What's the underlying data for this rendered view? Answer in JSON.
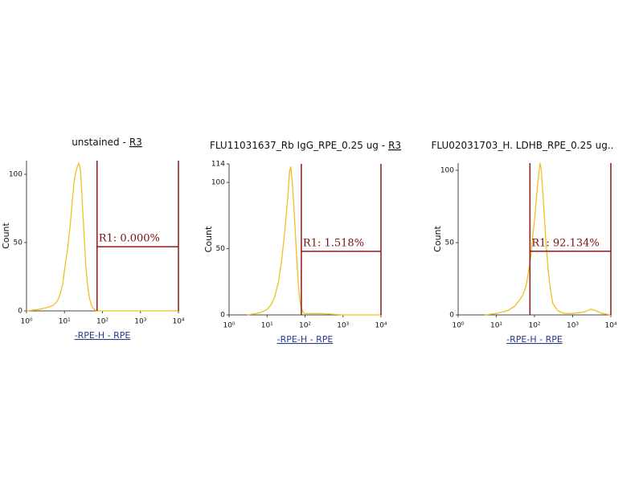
{
  "chart_data": [
    {
      "type": "line",
      "title": "unstained -",
      "title_link": "R3",
      "ylabel": "Count",
      "xlabel": "-RPE-H - RPE",
      "x_scale": "log",
      "color": "#f0c020",
      "x": [
        1,
        2,
        3,
        4,
        5,
        6,
        7,
        8,
        9,
        10,
        12,
        14,
        16,
        18,
        20,
        22,
        24,
        26,
        28,
        30,
        33,
        36,
        40,
        45,
        50,
        56,
        63,
        70,
        100,
        1000,
        10000
      ],
      "values": [
        0,
        1,
        2,
        3,
        4,
        6,
        9,
        14,
        20,
        30,
        45,
        62,
        80,
        95,
        102,
        106,
        108,
        104,
        90,
        75,
        55,
        35,
        20,
        10,
        5,
        2,
        1,
        0,
        0,
        0,
        0
      ],
      "xlim": [
        1,
        10000
      ],
      "ylim": [
        0,
        110
      ],
      "xticks": [
        {
          "value": 1,
          "label": "10⁰"
        },
        {
          "value": 10,
          "label": "10¹"
        },
        {
          "value": 100,
          "label": "10²"
        },
        {
          "value": 1000,
          "label": "10³"
        },
        {
          "value": 10000,
          "label": "10⁴"
        }
      ],
      "yticks": [
        0,
        50,
        100
      ],
      "gate": {
        "x": [
          72,
          10000
        ],
        "y": 47,
        "label": "R1: 0.000%"
      }
    },
    {
      "type": "line",
      "title": "FLU11031637_Rb IgG_RPE_0.25 ug -",
      "title_link": "R3",
      "ylabel": "Count",
      "xlabel": "-RPE-H - RPE",
      "x_scale": "log",
      "color": "#f0c020",
      "x": [
        3,
        5,
        7,
        10,
        13,
        16,
        20,
        24,
        28,
        32,
        36,
        39,
        42,
        46,
        50,
        55,
        60,
        66,
        72,
        80,
        90,
        100,
        300,
        1000,
        10000
      ],
      "values": [
        0,
        1,
        2,
        4,
        8,
        14,
        25,
        40,
        58,
        75,
        92,
        108,
        112,
        100,
        85,
        65,
        45,
        25,
        12,
        5,
        2,
        1,
        1,
        0,
        0
      ],
      "xlim": [
        1,
        10000
      ],
      "ylim": [
        0,
        114
      ],
      "xticks": [
        {
          "value": 1,
          "label": "10⁰"
        },
        {
          "value": 10,
          "label": "10¹"
        },
        {
          "value": 100,
          "label": "10²"
        },
        {
          "value": 1000,
          "label": "10³"
        },
        {
          "value": 10000,
          "label": "10⁴"
        }
      ],
      "yticks": [
        0,
        50,
        100,
        114
      ],
      "gate": {
        "x": [
          80,
          10000
        ],
        "y": 48,
        "label": "R1: 1.518%"
      }
    },
    {
      "type": "line",
      "title": "FLU02031703_H. LDHB_RPE_0.25 ug..",
      "ylabel": "Count",
      "xlabel": "-RPE-H - RPE",
      "x_scale": "log",
      "color": "#f0c020",
      "x": [
        5,
        10,
        20,
        30,
        40,
        50,
        60,
        70,
        80,
        90,
        100,
        110,
        120,
        130,
        140,
        150,
        165,
        180,
        200,
        230,
        260,
        300,
        400,
        600,
        1000,
        2000,
        3000,
        4000,
        6000,
        10000
      ],
      "values": [
        0,
        1,
        3,
        6,
        10,
        14,
        20,
        30,
        40,
        55,
        65,
        78,
        90,
        98,
        105,
        100,
        85,
        70,
        50,
        30,
        18,
        8,
        3,
        1,
        1,
        2,
        4,
        3,
        1,
        0
      ],
      "xlim": [
        1,
        10000
      ],
      "ylim": [
        0,
        105
      ],
      "xticks": [
        {
          "value": 1,
          "label": "10⁰"
        },
        {
          "value": 10,
          "label": "10¹"
        },
        {
          "value": 100,
          "label": "10²"
        },
        {
          "value": 1000,
          "label": "10³"
        },
        {
          "value": 10000,
          "label": "10⁴"
        }
      ],
      "yticks": [
        0,
        50,
        100
      ],
      "gate": {
        "x": [
          76,
          10000
        ],
        "y": 44,
        "label": "R1: 92.134%"
      }
    }
  ]
}
